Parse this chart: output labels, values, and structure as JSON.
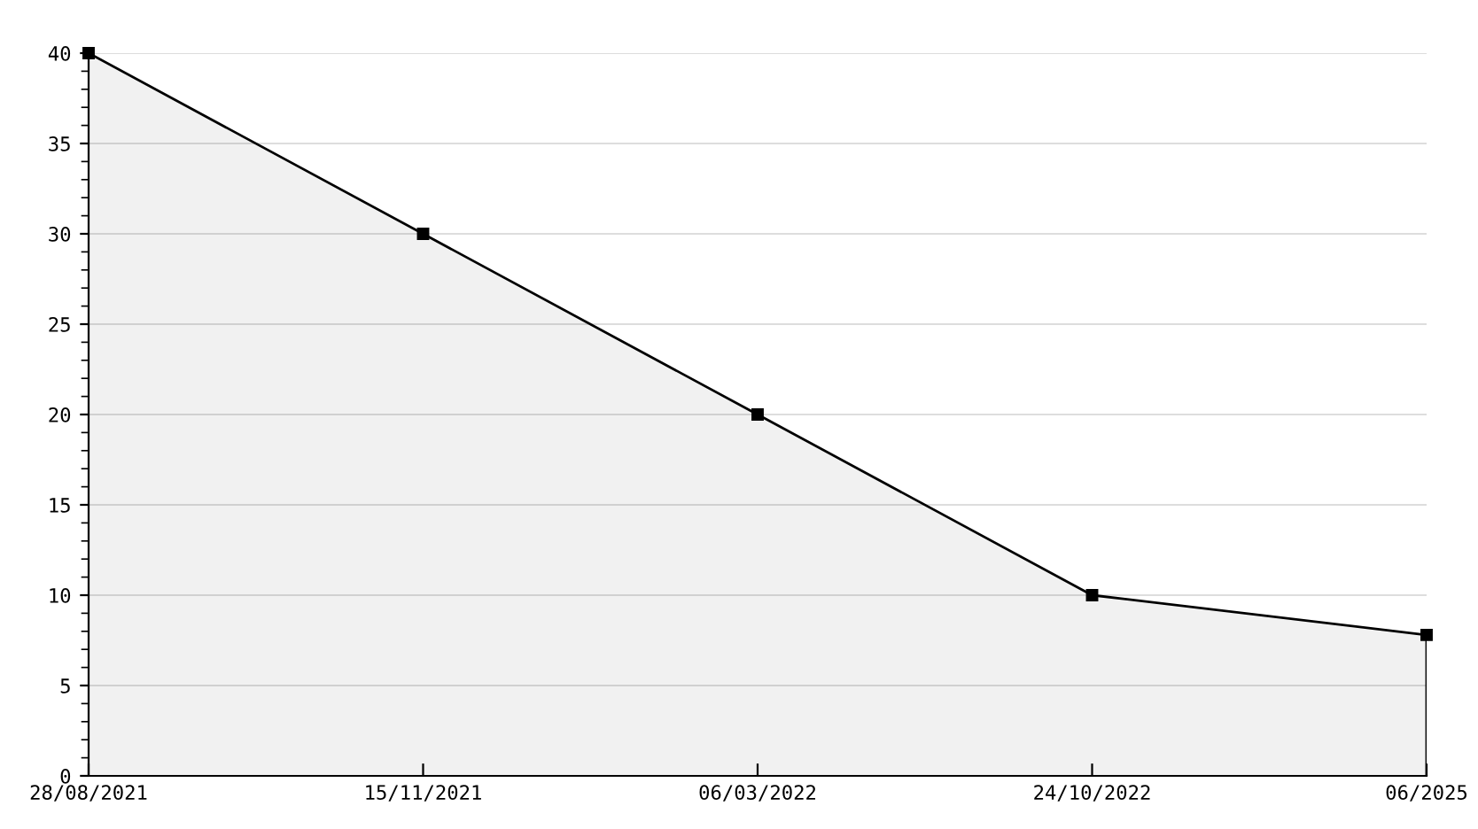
{
  "chart_data": {
    "type": "area",
    "categories": [
      "28/08/2021",
      "15/11/2021",
      "06/03/2022",
      "24/10/2022",
      "06/2025"
    ],
    "series": [
      {
        "color": "#000000",
        "values": [
          40,
          30,
          20,
          10,
          7.8
        ]
      }
    ],
    "ylim": [
      0,
      40
    ],
    "yticks": [
      0,
      5,
      10,
      15,
      20,
      25,
      30,
      35,
      40
    ],
    "grid": "y",
    "legend": false,
    "marker": "square",
    "line_style": "solid"
  }
}
